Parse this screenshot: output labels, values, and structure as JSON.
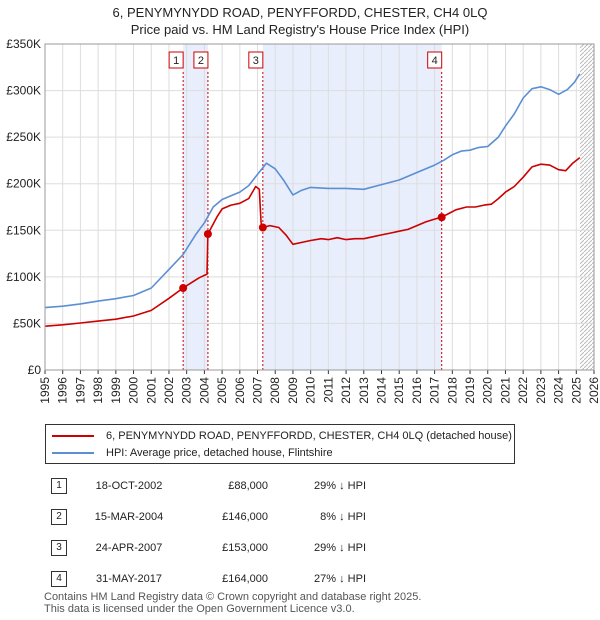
{
  "title_line1": "6, PENYMYNYDD ROAD, PENYFFORDD, CHESTER, CH4 0LQ",
  "title_line2": "Price paid vs. HM Land Registry's House Price Index (HPI)",
  "chart_data": {
    "type": "line",
    "title": "6, PENYMYNYDD ROAD, PENYFFORDD, CHESTER, CH4 0LQ — Price paid vs. HM Land Registry's House Price Index (HPI)",
    "xlim": [
      1995,
      2026
    ],
    "ylim": [
      0,
      350000
    ],
    "y_ticks": [
      {
        "value": 0,
        "label": "£0"
      },
      {
        "value": 50000,
        "label": "£50K"
      },
      {
        "value": 100000,
        "label": "£100K"
      },
      {
        "value": 150000,
        "label": "£150K"
      },
      {
        "value": 200000,
        "label": "£200K"
      },
      {
        "value": 250000,
        "label": "£250K"
      },
      {
        "value": 300000,
        "label": "£300K"
      },
      {
        "value": 350000,
        "label": "£350K"
      }
    ],
    "x_ticks": [
      "1995",
      "1996",
      "1997",
      "1998",
      "1999",
      "2000",
      "2001",
      "2002",
      "2003",
      "2004",
      "2005",
      "2006",
      "2007",
      "2008",
      "2009",
      "2010",
      "2011",
      "2012",
      "2013",
      "2014",
      "2015",
      "2016",
      "2017",
      "2018",
      "2019",
      "2020",
      "2021",
      "2022",
      "2023",
      "2024",
      "2025",
      "2026"
    ],
    "shaded_ranges": [
      [
        2002.8,
        2004.2
      ],
      [
        2007.3,
        2017.4
      ]
    ],
    "projection_start": 2025.2,
    "series": [
      {
        "name": "6, PENYMYNYDD ROAD, PENYFFORDD, CHESTER, CH4 0LQ (detached house)",
        "color": "#cc0000",
        "points": [
          [
            1995,
            47000
          ],
          [
            1996,
            48500
          ],
          [
            1997,
            50500
          ],
          [
            1998,
            52500
          ],
          [
            1999,
            54500
          ],
          [
            2000,
            58000
          ],
          [
            2001,
            64000
          ],
          [
            2002,
            77000
          ],
          [
            2002.8,
            88000
          ],
          [
            2003.2,
            93000
          ],
          [
            2003.7,
            99000
          ],
          [
            2004.15,
            103000
          ],
          [
            2004.2,
            146000
          ],
          [
            2004.7,
            164000
          ],
          [
            2005,
            173000
          ],
          [
            2005.5,
            177000
          ],
          [
            2006,
            179000
          ],
          [
            2006.5,
            184000
          ],
          [
            2006.9,
            197000
          ],
          [
            2007.1,
            194000
          ],
          [
            2007.2,
            158000
          ],
          [
            2007.3,
            153000
          ],
          [
            2007.7,
            155000
          ],
          [
            2008.2,
            153000
          ],
          [
            2008.6,
            145000
          ],
          [
            2009,
            135000
          ],
          [
            2009.5,
            137000
          ],
          [
            2010,
            139000
          ],
          [
            2010.6,
            141000
          ],
          [
            2011,
            140000
          ],
          [
            2011.5,
            142000
          ],
          [
            2012,
            140000
          ],
          [
            2012.5,
            141000
          ],
          [
            2013,
            141000
          ],
          [
            2013.5,
            143000
          ],
          [
            2014,
            145000
          ],
          [
            2014.5,
            147000
          ],
          [
            2015,
            149000
          ],
          [
            2015.5,
            151000
          ],
          [
            2016,
            155000
          ],
          [
            2016.5,
            159000
          ],
          [
            2017,
            162000
          ],
          [
            2017.4,
            164000
          ],
          [
            2017.8,
            168000
          ],
          [
            2018.2,
            172000
          ],
          [
            2018.8,
            175000
          ],
          [
            2019.3,
            175000
          ],
          [
            2019.8,
            177000
          ],
          [
            2020.2,
            178000
          ],
          [
            2020.6,
            184000
          ],
          [
            2021,
            191000
          ],
          [
            2021.5,
            197000
          ],
          [
            2022,
            207000
          ],
          [
            2022.5,
            218000
          ],
          [
            2023,
            221000
          ],
          [
            2023.5,
            220000
          ],
          [
            2024,
            215000
          ],
          [
            2024.4,
            214000
          ],
          [
            2024.8,
            222000
          ],
          [
            2025.2,
            228000
          ]
        ]
      },
      {
        "name": "HPI: Average price, detached house, Flintshire",
        "color": "#5b8fd4",
        "points": [
          [
            1995,
            67000
          ],
          [
            1996,
            68500
          ],
          [
            1997,
            71000
          ],
          [
            1998,
            74000
          ],
          [
            1999,
            76500
          ],
          [
            2000,
            80000
          ],
          [
            2001,
            88000
          ],
          [
            2002,
            108000
          ],
          [
            2002.8,
            124000
          ],
          [
            2003.5,
            145000
          ],
          [
            2004,
            158000
          ],
          [
            2004.5,
            175000
          ],
          [
            2005,
            183000
          ],
          [
            2005.5,
            187000
          ],
          [
            2006,
            191000
          ],
          [
            2006.5,
            198000
          ],
          [
            2007,
            210000
          ],
          [
            2007.5,
            222000
          ],
          [
            2008,
            216000
          ],
          [
            2008.5,
            203000
          ],
          [
            2009,
            188000
          ],
          [
            2009.5,
            193000
          ],
          [
            2010,
            196000
          ],
          [
            2011,
            195000
          ],
          [
            2012,
            195000
          ],
          [
            2013,
            194000
          ],
          [
            2014,
            199000
          ],
          [
            2015,
            204000
          ],
          [
            2016,
            212000
          ],
          [
            2017,
            220000
          ],
          [
            2017.5,
            225000
          ],
          [
            2018,
            231000
          ],
          [
            2018.5,
            235000
          ],
          [
            2019,
            236000
          ],
          [
            2019.5,
            239000
          ],
          [
            2020,
            240000
          ],
          [
            2020.6,
            250000
          ],
          [
            2021,
            262000
          ],
          [
            2021.5,
            275000
          ],
          [
            2022,
            292000
          ],
          [
            2022.5,
            302000
          ],
          [
            2023,
            304000
          ],
          [
            2023.5,
            301000
          ],
          [
            2024,
            296000
          ],
          [
            2024.5,
            301000
          ],
          [
            2024.9,
            309000
          ],
          [
            2025.2,
            318000
          ]
        ]
      }
    ],
    "markers": [
      {
        "id": "1",
        "x": 2002.8,
        "y": 88000
      },
      {
        "id": "2",
        "x": 2004.2,
        "y": 146000
      },
      {
        "id": "3",
        "x": 2007.3,
        "y": 153000
      },
      {
        "id": "4",
        "x": 2017.4,
        "y": 164000
      }
    ],
    "legend": [
      {
        "label": "6, PENYMYNYDD ROAD, PENYFFORDD, CHESTER, CH4 0LQ (detached house)",
        "color": "#cc0000"
      },
      {
        "label": "HPI: Average price, detached house, Flintshire",
        "color": "#5b8fd4"
      }
    ]
  },
  "transactions": [
    {
      "num": "1",
      "date": "18-OCT-2002",
      "price": "£88,000",
      "hpi": "29% ↓ HPI"
    },
    {
      "num": "2",
      "date": "15-MAR-2004",
      "price": "£146,000",
      "hpi": "8% ↓ HPI"
    },
    {
      "num": "3",
      "date": "24-APR-2007",
      "price": "£153,000",
      "hpi": "29% ↓ HPI"
    },
    {
      "num": "4",
      "date": "31-MAY-2017",
      "price": "£164,000",
      "hpi": "27% ↓ HPI"
    }
  ],
  "footer_line1": "Contains HM Land Registry data © Crown copyright and database right 2025.",
  "footer_line2": "This data is licensed under the Open Government Licence v3.0."
}
